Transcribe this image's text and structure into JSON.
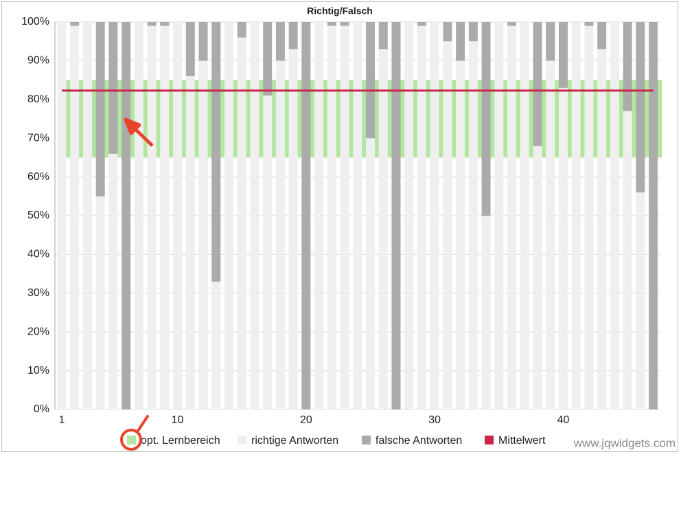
{
  "chart_data": {
    "type": "bar",
    "title": "Richtig/Falsch",
    "categories": [
      1,
      null,
      null,
      null,
      null,
      null,
      null,
      null,
      null,
      10,
      null,
      null,
      null,
      null,
      null,
      null,
      null,
      null,
      null,
      20,
      null,
      null,
      null,
      null,
      null,
      null,
      null,
      null,
      null,
      30,
      null,
      null,
      null,
      null,
      null,
      null,
      null,
      null,
      null,
      40,
      null,
      null,
      null,
      null,
      null,
      null,
      null
    ],
    "series": [
      {
        "name": "opt. Lernbereich",
        "color": "#b3e6a1",
        "range": [
          65,
          85
        ]
      },
      {
        "name": "richtige Antworten",
        "color": "#efefef",
        "values": [
          100,
          99,
          100,
          55,
          66,
          0,
          100,
          99,
          99,
          100,
          86,
          90,
          33,
          100,
          96,
          100,
          81,
          90,
          93,
          0,
          100,
          99,
          99,
          100,
          70,
          93,
          0,
          100,
          99,
          100,
          95,
          90,
          95,
          50,
          100,
          99,
          100,
          68,
          90,
          83,
          100,
          99,
          93,
          100,
          77,
          56,
          0
        ]
      },
      {
        "name": "falsche Antworten",
        "color": "#ababab",
        "values": [
          0,
          1,
          0,
          45,
          34,
          100,
          0,
          1,
          1,
          0,
          14,
          10,
          67,
          0,
          4,
          0,
          19,
          10,
          7,
          100,
          0,
          1,
          1,
          0,
          30,
          7,
          100,
          0,
          1,
          0,
          5,
          10,
          5,
          50,
          0,
          1,
          0,
          32,
          10,
          17,
          0,
          1,
          7,
          0,
          23,
          44,
          100
        ]
      },
      {
        "name": "Mittelwert",
        "color": "#c8264b",
        "value": 82.3
      }
    ],
    "ylim": [
      0,
      100
    ],
    "yticks": [
      {
        "value": 0,
        "label": "0%"
      },
      {
        "value": 10,
        "label": "10%"
      },
      {
        "value": 20,
        "label": "20%"
      },
      {
        "value": 30,
        "label": "30%"
      },
      {
        "value": 40,
        "label": "40%"
      },
      {
        "value": 50,
        "label": "50%"
      },
      {
        "value": 60,
        "label": "60%"
      },
      {
        "value": 70,
        "label": "70%"
      },
      {
        "value": 80,
        "label": "80%"
      },
      {
        "value": 90,
        "label": "90%"
      },
      {
        "value": 100,
        "label": "100%"
      }
    ],
    "grid": true,
    "watermark": "www.jqwidgets.com"
  }
}
